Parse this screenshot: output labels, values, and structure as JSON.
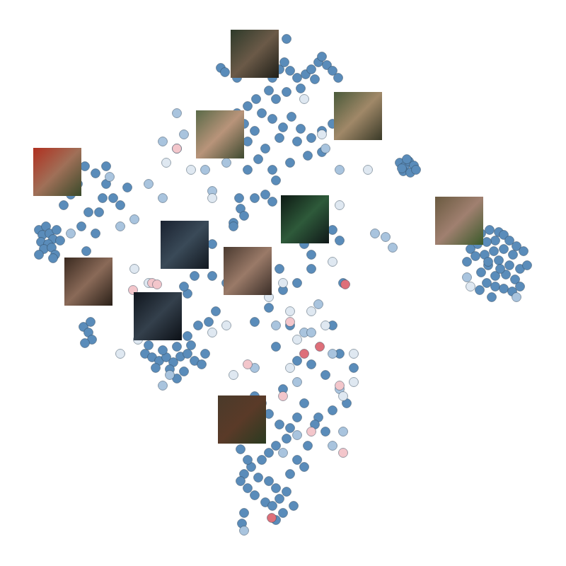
{
  "chart_data": {
    "type": "scatter",
    "marker": "circle",
    "tick_labels": false,
    "grid": false,
    "xlim": [
      0,
      800
    ],
    "ylim": [
      0,
      800
    ],
    "series": [
      {
        "color": "#5a8cba",
        "x": [
          312,
          318,
          335,
          345,
          350,
          360,
          372,
          385,
          395,
          405,
          402,
          410,
          420,
          432,
          440,
          450,
          455,
          462,
          470,
          478,
          445,
          425,
          405,
          390,
          380,
          362,
          350,
          335,
          345,
          360,
          370,
          385,
          400,
          412,
          425,
          440,
          455,
          470,
          420,
          395,
          375,
          350,
          330,
          310,
          365,
          385,
          410,
          435,
          455,
          390,
          350,
          340,
          330,
          345,
          385,
          375,
          565,
          572,
          578,
          585,
          570,
          580,
          588,
          575,
          568,
          680,
          692,
          705,
          712,
          700,
          688,
          675,
          665,
          720,
          730,
          740,
          725,
          712,
          698,
          685,
          672,
          660,
          705,
          720,
          735,
          745,
          690,
          680,
          700,
          715,
          728,
          688,
          700,
          712,
          724,
          735,
          678,
          695,
          690,
          707,
          55,
          60,
          65,
          70,
          75,
          58,
          68,
          80,
          62,
          73,
          78,
          55,
          85,
          120,
          135,
          150,
          145,
          110,
          90,
          125,
          140,
          160,
          170,
          180,
          150,
          100,
          115,
          135,
          122,
          75,
          105,
          118,
          125,
          130,
          120,
          128,
          205,
          215,
          225,
          235,
          245,
          255,
          265,
          275,
          285,
          220,
          240,
          260,
          230,
          250,
          270,
          210,
          290,
          250,
          265,
          280,
          295,
          305,
          245,
          265,
          275,
          260,
          300,
          320,
          330,
          338,
          360,
          410,
          430,
          440,
          470,
          480,
          485,
          440,
          420,
          400,
          395,
          350,
          300,
          285,
          470,
          480,
          500,
          460,
          440,
          420,
          390,
          400,
          430,
          450,
          470,
          445,
          460,
          490,
          410,
          380,
          360,
          330,
          360,
          370,
          345,
          380,
          395,
          410,
          420,
          405,
          390,
          380,
          370,
          355,
          345,
          340,
          350,
          360,
          375,
          385,
          395,
          405,
          390,
          380,
          365,
          350,
          340,
          410,
          420,
          430,
          345,
          342,
          400,
          390,
          415,
          435,
          325,
          335
        ],
        "values": [
          704,
          698,
          690,
          700,
          712,
          705,
          700,
          690,
          702,
          745,
          712,
          700,
          690,
          695,
          702,
          712,
          720,
          708,
          700,
          690,
          688,
          675,
          670,
          660,
          672,
          660,
          650,
          640,
          625,
          615,
          640,
          632,
          620,
          635,
          618,
          605,
          615,
          625,
          600,
          605,
          590,
          600,
          610,
          620,
          575,
          560,
          570,
          580,
          585,
          545,
          560,
          505,
          485,
          495,
          515,
          525,
          570,
          565,
          572,
          566,
          558,
          556,
          560,
          575,
          562,
          470,
          475,
          472,
          468,
          460,
          458,
          455,
          448,
          460,
          452,
          445,
          440,
          448,
          445,
          440,
          438,
          430,
          432,
          425,
          420,
          425,
          425,
          415,
          410,
          412,
          405,
          400,
          395,
          392,
          388,
          395,
          390,
          380,
          430,
          420,
          475,
          468,
          480,
          470,
          462,
          458,
          455,
          475,
          448,
          450,
          440,
          440,
          460,
          565,
          555,
          540,
          520,
          540,
          510,
          500,
          500,
          520,
          510,
          535,
          565,
          525,
          480,
          470,
          445,
          435,
          410,
          338,
          330,
          320,
          315,
          345,
          300,
          295,
          290,
          295,
          288,
          296,
          300,
          290,
          285,
          280,
          278,
          275,
          305,
          310,
          312,
          312,
          300,
          265,
          325,
          340,
          345,
          360,
          370,
          385,
          410,
          395,
          410,
          400,
          480,
          520,
          520,
          470,
          455,
          440,
          475,
          460,
          400,
          420,
          400,
          390,
          420,
          430,
          455,
          470,
          340,
          300,
          280,
          270,
          285,
          290,
          310,
          250,
          230,
          210,
          220,
          200,
          190,
          230,
          340,
          365,
          345,
          420,
          240,
          230,
          220,
          215,
          200,
          195,
          210,
          180,
          170,
          160,
          150,
          140,
          130,
          120,
          110,
          100,
          90,
          85,
          95,
          105,
          110,
          120,
          125,
          150,
          165,
          130,
          150,
          140,
          75,
          60,
          75,
          65,
          85,
          170,
          200,
          185
        ]
      },
      {
        "color": "#a9c4de",
        "x": [
          250,
          260,
          230,
          290,
          300,
          320,
          460,
          480,
          530,
          545,
          555,
          190,
          170,
          100,
          660,
          730,
          240,
          230,
          390,
          430,
          450,
          470,
          440,
          480,
          420,
          360,
          420,
          400,
          360,
          345,
          470,
          485,
          230,
          210,
          155
        ],
        "values": [
          640,
          610,
          600,
          560,
          530,
          570,
          590,
          560,
          470,
          465,
          450,
          490,
          480,
          470,
          408,
          380,
          270,
          255,
          340,
          330,
          370,
          300,
          330,
          250,
          260,
          280,
          185,
          160,
          180,
          50,
          170,
          190,
          520,
          540,
          550
        ]
      },
      {
        "color": "#dfe8f1",
        "x": [
          235,
          250,
          270,
          300,
          430,
          455,
          520,
          480,
          440,
          470,
          400,
          380,
          410,
          440,
          460,
          420,
          500,
          485,
          360,
          330,
          300,
          320,
          210,
          190,
          170,
          195,
          665,
          500,
          345,
          410
        ],
        "values": [
          570,
          590,
          560,
          520,
          660,
          610,
          560,
          510,
          480,
          430,
          400,
          380,
          360,
          360,
          340,
          320,
          300,
          240,
          230,
          270,
          330,
          340,
          400,
          420,
          300,
          320,
          395,
          260,
          210,
          280
        ]
      },
      {
        "color": "#f3c6cb",
        "x": [
          250,
          188,
          215,
          222,
          410,
          350,
          480,
          485,
          400,
          440
        ],
        "values": [
          590,
          390,
          400,
          398,
          345,
          285,
          255,
          160,
          240,
          190
        ]
      },
      {
        "color": "#de6f79",
        "x": [
          488,
          430,
          452,
          384
        ],
        "values": [
          398,
          300,
          310,
          68
        ]
      }
    ]
  }
}
